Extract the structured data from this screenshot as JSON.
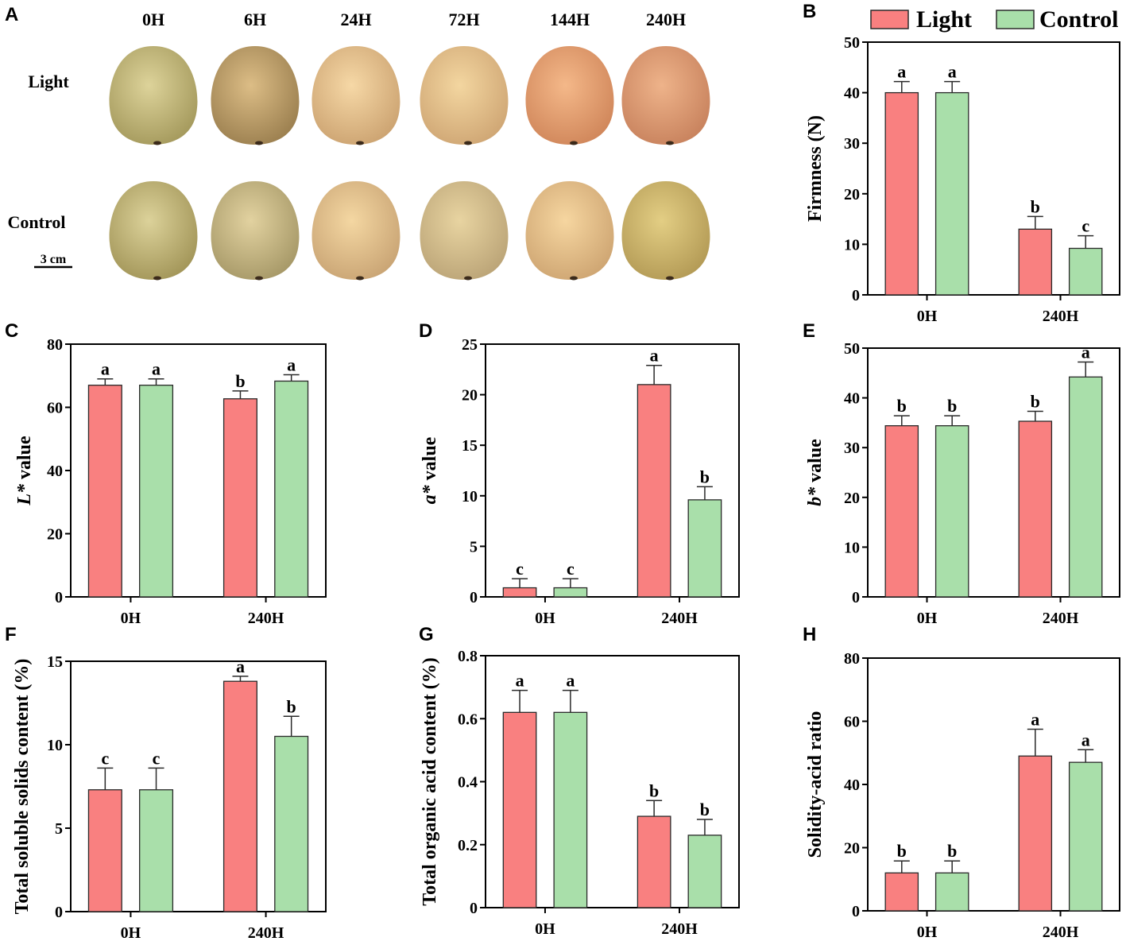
{
  "colors": {
    "light": "#f98080",
    "control": "#a9dfaa",
    "axis": "#000000",
    "stroke": "#2a2a2a"
  },
  "legend": {
    "light": "Light",
    "control": "Control"
  },
  "photo": {
    "panel": "A",
    "times": [
      "0H",
      "6H",
      "24H",
      "72H",
      "144H",
      "240H"
    ],
    "rows": [
      "Light",
      "Control"
    ],
    "scale_bar": "3 cm",
    "fruit_colors": {
      "Light": [
        [
          "#ddd39a",
          "#a4995c"
        ],
        [
          "#dcbd86",
          "#9b7f4f"
        ],
        [
          "#f6d8a6",
          "#cca371"
        ],
        [
          "#f3d6a0",
          "#cfa674"
        ],
        [
          "#f4b889",
          "#d0865a"
        ],
        [
          "#eeb38a",
          "#c8825d"
        ]
      ],
      "Control": [
        [
          "#dcd29a",
          "#a29558"
        ],
        [
          "#e2d2a0",
          "#a69867"
        ],
        [
          "#f4d7a2",
          "#c9a474"
        ],
        [
          "#e8d4a1",
          "#bba477"
        ],
        [
          "#f6d6a0",
          "#cea572"
        ],
        [
          "#e3ce84",
          "#b39a55"
        ]
      ]
    }
  },
  "chart_data": [
    {
      "panel": "B",
      "type": "bar",
      "title": "",
      "xlabel": "",
      "ylabel": "Firmness (N)",
      "ylim": [
        0,
        50
      ],
      "yticks": [
        0,
        10,
        20,
        30,
        40,
        50
      ],
      "categories": [
        "0H",
        "240H"
      ],
      "series": [
        {
          "name": "Light",
          "values": [
            40,
            13
          ],
          "errors": [
            2.2,
            2.5
          ],
          "letters": [
            "a",
            "b"
          ]
        },
        {
          "name": "Control",
          "values": [
            40,
            9.2
          ],
          "errors": [
            2.2,
            2.5
          ],
          "letters": [
            "a",
            "c"
          ]
        }
      ]
    },
    {
      "panel": "C",
      "type": "bar",
      "title": "",
      "xlabel": "",
      "ylabel": "L* value",
      "ylim": [
        0,
        80
      ],
      "yticks": [
        0,
        20,
        40,
        60,
        80
      ],
      "categories": [
        "0H",
        "240H"
      ],
      "series": [
        {
          "name": "Light",
          "values": [
            67,
            62.7
          ],
          "errors": [
            2,
            2.5
          ],
          "letters": [
            "a",
            "b"
          ]
        },
        {
          "name": "Control",
          "values": [
            67,
            68.3
          ],
          "errors": [
            2,
            2
          ],
          "letters": [
            "a",
            "a"
          ]
        }
      ]
    },
    {
      "panel": "D",
      "type": "bar",
      "title": "",
      "xlabel": "",
      "ylabel": "a* value",
      "ylim": [
        0,
        25
      ],
      "yticks": [
        0,
        5,
        10,
        15,
        20,
        25
      ],
      "categories": [
        "0H",
        "240H"
      ],
      "series": [
        {
          "name": "Light",
          "values": [
            0.9,
            21
          ],
          "errors": [
            0.9,
            1.9
          ],
          "letters": [
            "c",
            "a"
          ]
        },
        {
          "name": "Control",
          "values": [
            0.9,
            9.6
          ],
          "errors": [
            0.9,
            1.3
          ],
          "letters": [
            "c",
            "b"
          ]
        }
      ]
    },
    {
      "panel": "E",
      "type": "bar",
      "title": "",
      "xlabel": "",
      "ylabel": "b* value",
      "ylim": [
        0,
        50
      ],
      "yticks": [
        0,
        10,
        20,
        30,
        40,
        50
      ],
      "categories": [
        "0H",
        "240H"
      ],
      "series": [
        {
          "name": "Light",
          "values": [
            34.4,
            35.3
          ],
          "errors": [
            2,
            2
          ],
          "letters": [
            "b",
            "b"
          ]
        },
        {
          "name": "Control",
          "values": [
            34.4,
            44.2
          ],
          "errors": [
            2,
            3
          ],
          "letters": [
            "b",
            "a"
          ]
        }
      ]
    },
    {
      "panel": "F",
      "type": "bar",
      "title": "",
      "xlabel": "",
      "ylabel": "Total soluble solids content (%)",
      "ylim": [
        0,
        15
      ],
      "yticks": [
        0,
        5,
        10,
        15
      ],
      "categories": [
        "0H",
        "240H"
      ],
      "series": [
        {
          "name": "Light",
          "values": [
            7.3,
            13.8
          ],
          "errors": [
            1.3,
            0.3
          ],
          "letters": [
            "c",
            "a"
          ]
        },
        {
          "name": "Control",
          "values": [
            7.3,
            10.5
          ],
          "errors": [
            1.3,
            1.2
          ],
          "letters": [
            "c",
            "b"
          ]
        }
      ]
    },
    {
      "panel": "G",
      "type": "bar",
      "title": "",
      "xlabel": "",
      "ylabel": "Total organic acid content (%)",
      "ylim": [
        0,
        0.8
      ],
      "yticks": [
        0,
        0.2,
        0.4,
        0.6,
        0.8
      ],
      "categories": [
        "0H",
        "240H"
      ],
      "series": [
        {
          "name": "Light",
          "values": [
            0.62,
            0.29
          ],
          "errors": [
            0.07,
            0.05
          ],
          "letters": [
            "a",
            "b"
          ]
        },
        {
          "name": "Control",
          "values": [
            0.62,
            0.23
          ],
          "errors": [
            0.07,
            0.05
          ],
          "letters": [
            "a",
            "b"
          ]
        }
      ]
    },
    {
      "panel": "H",
      "type": "bar",
      "title": "",
      "xlabel": "",
      "ylabel": "Solidity-acid ratio",
      "ylim": [
        0,
        80
      ],
      "yticks": [
        0,
        20,
        40,
        60,
        80
      ],
      "categories": [
        "0H",
        "240H"
      ],
      "series": [
        {
          "name": "Light",
          "values": [
            12,
            49
          ],
          "errors": [
            3.8,
            8.5
          ],
          "letters": [
            "b",
            "a"
          ]
        },
        {
          "name": "Control",
          "values": [
            12,
            47
          ],
          "errors": [
            3.8,
            4
          ],
          "letters": [
            "b",
            "a"
          ]
        }
      ]
    }
  ]
}
